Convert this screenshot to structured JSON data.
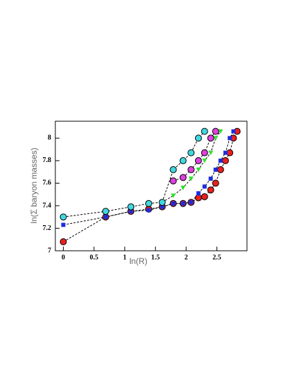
{
  "chart_data": {
    "type": "line",
    "x_label": "ln(R)",
    "y_label": "ln(Σ  baryon masses)",
    "xlim": [
      -0.13,
      2.99
    ],
    "ylim": [
      7,
      8.15
    ],
    "xticks": [
      0,
      0.5,
      1,
      1.5,
      2,
      2.5
    ],
    "yticks": [
      7,
      7.2,
      7.4,
      7.6,
      7.8,
      8
    ],
    "line_color": "#000000",
    "series": [
      {
        "color": "#e8201e",
        "marker": "circle",
        "x": [
          0,
          0.69,
          1.1,
          1.39,
          1.61,
          1.79,
          1.95,
          2.08,
          2.2,
          2.3,
          2.4,
          2.48,
          2.56,
          2.64,
          2.71,
          2.77,
          2.83
        ],
        "values": [
          7.08,
          7.3,
          7.35,
          7.37,
          7.39,
          7.42,
          7.42,
          7.43,
          7.47,
          7.48,
          7.54,
          7.6,
          7.72,
          7.8,
          7.87,
          8.0,
          8.06
        ]
      },
      {
        "color": "#1a2ee0",
        "marker": "square",
        "x": [
          0,
          0.69,
          1.1,
          1.39,
          1.61,
          1.79,
          1.95,
          2.08,
          2.2,
          2.3,
          2.4,
          2.48,
          2.56,
          2.64,
          2.71,
          2.77
        ],
        "values": [
          7.23,
          7.3,
          7.35,
          7.36,
          7.39,
          7.42,
          7.42,
          7.43,
          7.51,
          7.57,
          7.64,
          7.72,
          7.8,
          7.87,
          8.0,
          8.06
        ]
      },
      {
        "color": "#2ee02a",
        "marker": "triangle",
        "x": [
          1.61,
          1.79,
          1.95,
          2.08,
          2.2,
          2.3,
          2.4,
          2.48,
          2.56
        ],
        "values": [
          7.43,
          7.49,
          7.56,
          7.64,
          7.72,
          7.8,
          7.87,
          8.0,
          8.06
        ]
      },
      {
        "color": "#e040e0",
        "marker": "circle",
        "x": [
          1.79,
          1.95,
          2.08,
          2.2,
          2.3,
          2.4,
          2.48
        ],
        "values": [
          7.62,
          7.65,
          7.72,
          7.8,
          7.87,
          8.0,
          8.06
        ]
      },
      {
        "color": "#40d8e0",
        "marker": "circle",
        "x": [
          0,
          0.69,
          1.1,
          1.39,
          1.61,
          1.79,
          1.95,
          2.08,
          2.2,
          2.3
        ],
        "values": [
          7.3,
          7.35,
          7.39,
          7.42,
          7.43,
          7.72,
          7.8,
          7.87,
          8.0,
          8.06
        ]
      }
    ]
  }
}
